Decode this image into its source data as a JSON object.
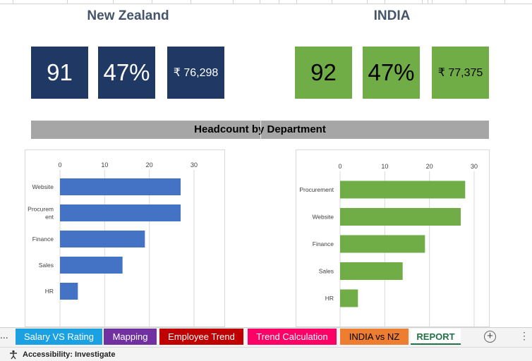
{
  "regions": {
    "nz": {
      "title": "New Zealand",
      "kpis": [
        "91",
        "47%",
        "₹ 76,298"
      ]
    },
    "india": {
      "title": "INDIA",
      "kpis": [
        "92",
        "47%",
        "₹ 77,375"
      ]
    }
  },
  "banner": {
    "title": "Headcount by Department"
  },
  "colors": {
    "nz": "#203864",
    "india": "#70ad47",
    "nz_bar": "#4472c4",
    "india_bar": "#70ad47"
  },
  "chart_data": [
    {
      "type": "bar",
      "orientation": "horizontal",
      "title": "",
      "categories": [
        "Website",
        "Procurement",
        "Finance",
        "Sales",
        "HR"
      ],
      "category_labels": [
        [
          "Website"
        ],
        [
          "Procurem",
          "ent"
        ],
        [
          "Finance"
        ],
        [
          "Sales"
        ],
        [
          "HR"
        ]
      ],
      "values": [
        27,
        27,
        19,
        14,
        4
      ],
      "xlim": [
        0,
        30
      ],
      "ticks": [
        "0",
        "10",
        "20",
        "30"
      ],
      "color": "#4472c4",
      "grid": true,
      "axis_position": "top"
    },
    {
      "type": "bar",
      "orientation": "horizontal",
      "title": "",
      "categories": [
        "Procurement",
        "Website",
        "Finance",
        "Sales",
        "HR"
      ],
      "category_labels": [
        [
          "Procurement"
        ],
        [
          "Website"
        ],
        [
          "Finance"
        ],
        [
          "Sales"
        ],
        [
          "HR"
        ]
      ],
      "values": [
        28,
        27,
        19,
        14,
        4
      ],
      "xlim": [
        0,
        30
      ],
      "ticks": [
        "0",
        "10",
        "20",
        "30"
      ],
      "color": "#70ad47",
      "grid": true,
      "axis_position": "top"
    }
  ],
  "sheet_tabs": {
    "overflow": "...",
    "tabs": [
      {
        "label": "Salary VS Rating",
        "color": "#1ba1e2"
      },
      {
        "label": "Mapping",
        "color": "#7030a0"
      },
      {
        "label": "Employee Trend",
        "color": "#c00000"
      },
      {
        "label": "Trend Calculation",
        "color": "#ff0066"
      },
      {
        "label": "INDIA vs NZ",
        "color": "#ed7d31"
      },
      {
        "label": "REPORT",
        "color": "#ffffff"
      }
    ],
    "add_icon": "+",
    "more_icon": "⋮"
  },
  "status": {
    "accessibility": "Accessibility: Investigate"
  }
}
